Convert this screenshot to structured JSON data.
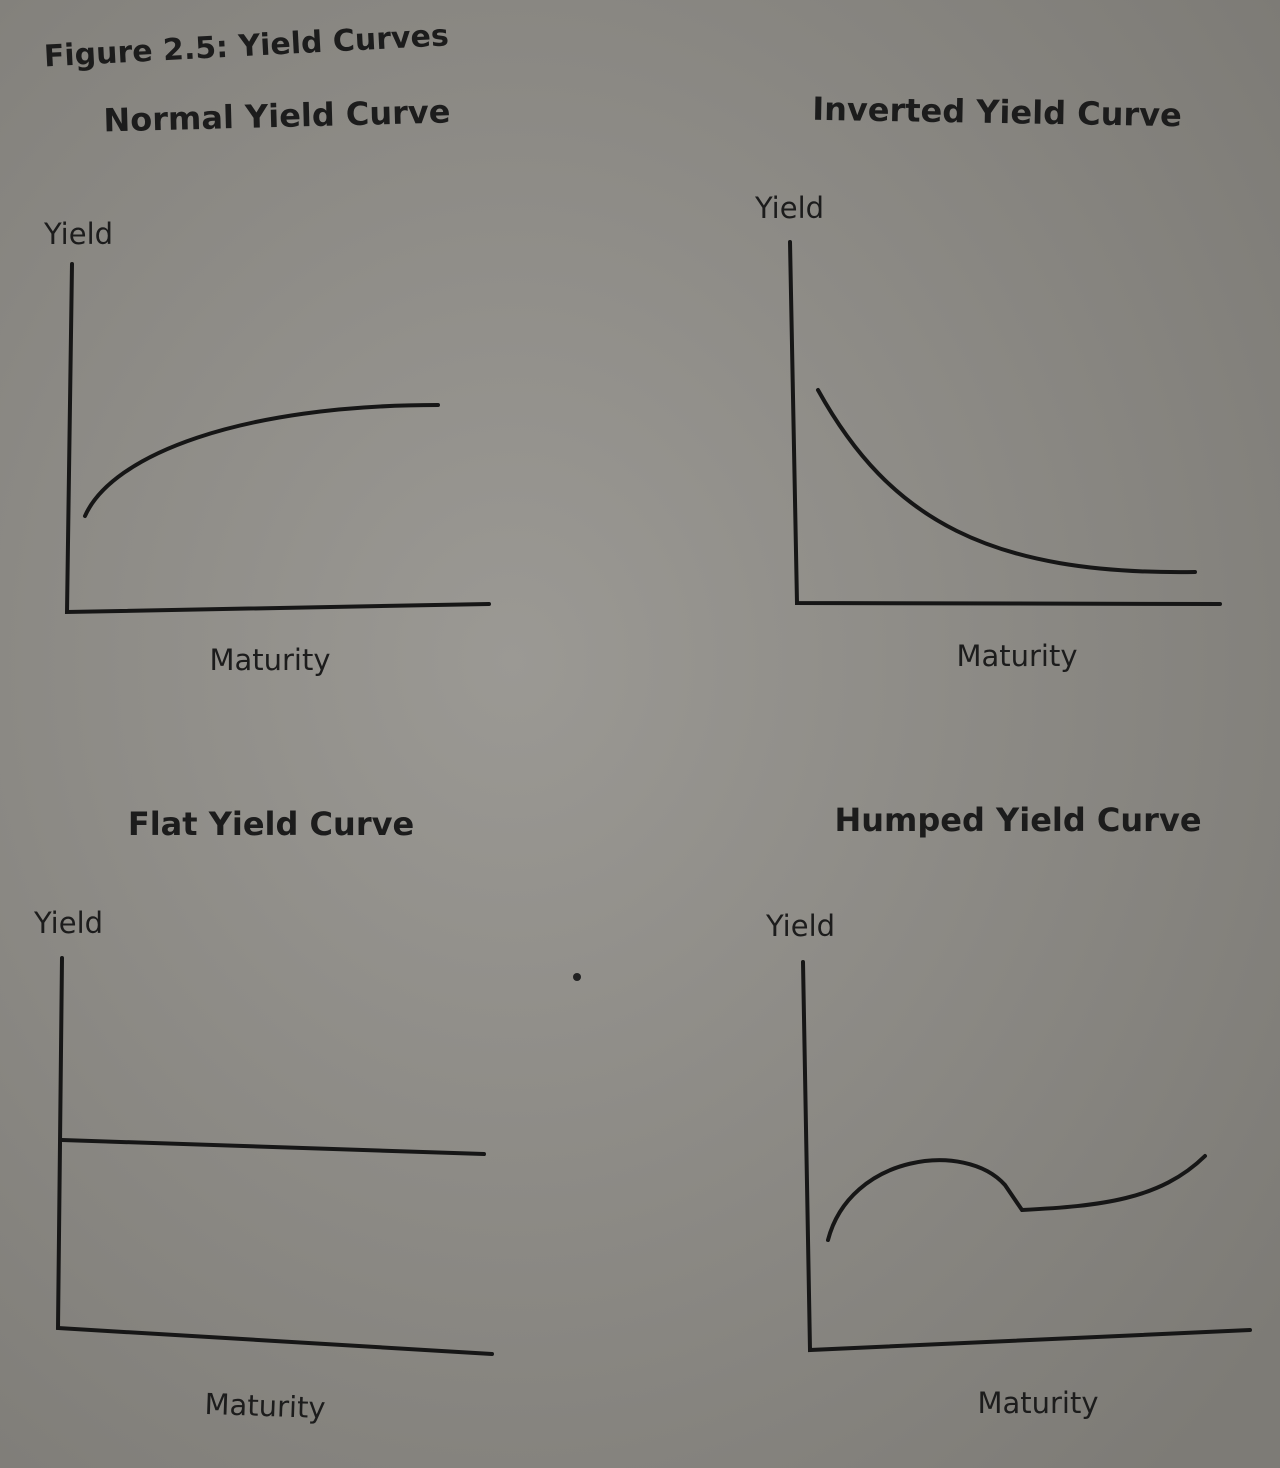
{
  "figure": {
    "title": "Figure 2.5: Yield Curves",
    "panels": [
      {
        "title": "Normal Yield Curve",
        "y_label": "Yield",
        "x_label": "Maturity"
      },
      {
        "title": "Inverted Yield Curve",
        "y_label": "Yield",
        "x_label": "Maturity"
      },
      {
        "title": "Flat Yield Curve",
        "y_label": "Yield",
        "x_label": "Maturity"
      },
      {
        "title": "Humped Yield Curve",
        "y_label": "Yield",
        "x_label": "Maturity"
      }
    ]
  }
}
